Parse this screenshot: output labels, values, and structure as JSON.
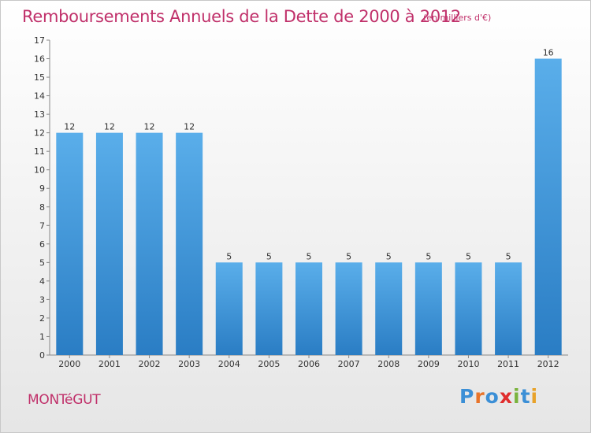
{
  "title": "Remboursements Annuels de la Dette de 2000 à 2012",
  "unit_note": "(en milliers d'€)",
  "commune": "MONTéGUT",
  "logo_text": "Proxiti",
  "colors": {
    "title": "#c0306a",
    "bar_top": "#5aaeea",
    "bar_bottom": "#2a7dc4"
  },
  "chart_data": {
    "type": "bar",
    "title": "Remboursements Annuels de la Dette de 2000 à 2012",
    "subtitle": "(en milliers d'€)",
    "categories": [
      "2000",
      "2001",
      "2002",
      "2003",
      "2004",
      "2005",
      "2006",
      "2007",
      "2008",
      "2009",
      "2010",
      "2011",
      "2012"
    ],
    "values": [
      12,
      12,
      12,
      12,
      5,
      5,
      5,
      5,
      5,
      5,
      5,
      5,
      16
    ],
    "ylim": [
      0,
      17
    ],
    "yticks": [
      0,
      1,
      2,
      3,
      4,
      5,
      6,
      7,
      8,
      9,
      10,
      11,
      12,
      13,
      14,
      15,
      16,
      17
    ],
    "xlabel": "",
    "ylabel": "",
    "grid": false
  }
}
